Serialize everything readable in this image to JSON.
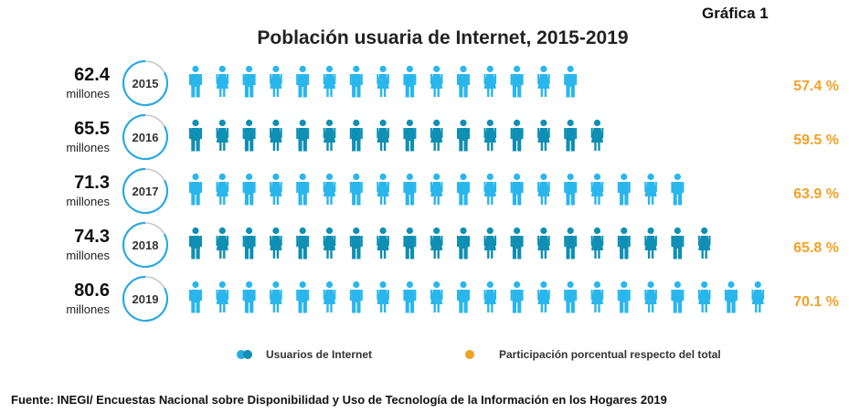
{
  "figure_label": "Gráfica 1",
  "title": "Población usuaria de Internet, 2015-2019",
  "chart_data": {
    "type": "pictograph",
    "rows": [
      {
        "year": "2015",
        "value": "62.4",
        "unit": "millones",
        "pct": "57.4 %",
        "icons": 15
      },
      {
        "year": "2016",
        "value": "65.5",
        "unit": "millones",
        "pct": "59.5 %",
        "icons": 16
      },
      {
        "year": "2017",
        "value": "71.3",
        "unit": "millones",
        "pct": "63.9 %",
        "icons": 19
      },
      {
        "year": "2018",
        "value": "74.3",
        "unit": "millones",
        "pct": "65.8 %",
        "icons": 20
      },
      {
        "year": "2019",
        "value": "80.6",
        "unit": "millones",
        "pct": "70.1 %",
        "icons": 22
      }
    ],
    "legend": [
      {
        "label": "Usuarios de Internet",
        "color": "#29a9e0"
      },
      {
        "label": "Participación porcentual respecto del total",
        "color": "#f0a227"
      }
    ]
  },
  "colors": {
    "icon_light": "#29b6ec",
    "icon_dark": "#0e8fb3",
    "ring": "#29a9e0",
    "ring_gap": "#c6c6c6",
    "pct": "#f0a227"
  },
  "source": "Fuente: INEGI/ Encuestas Nacional sobre Disponibilidad y Uso de Tecnología de la Información en los Hogares 2019"
}
